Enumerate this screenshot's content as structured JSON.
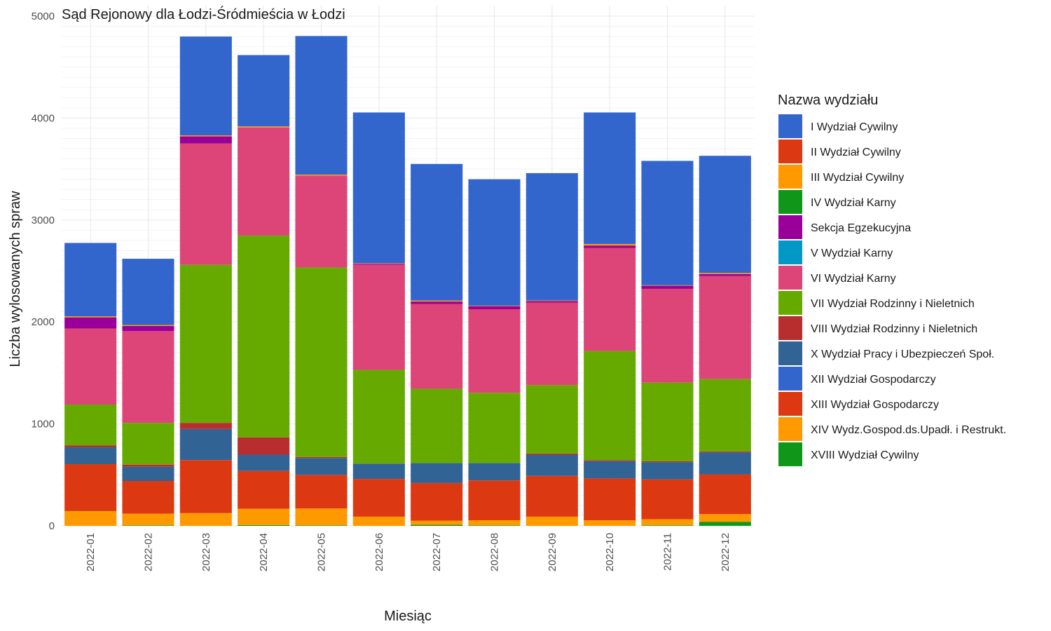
{
  "chart_data": {
    "type": "bar",
    "stacked": true,
    "title": "Sąd Rejonowy dla Łodzi-Śródmieścia w Łodzi",
    "xlabel": "Miesiąc",
    "ylabel": "Liczba wylosowanych spraw",
    "ylim": [
      0,
      5000
    ],
    "yticks": [
      0,
      1000,
      2000,
      3000,
      4000,
      5000
    ],
    "grid": true,
    "legend_title": "Nazwa wydziału",
    "legend_position": "right",
    "categories": [
      "2022-01",
      "2022-02",
      "2022-03",
      "2022-04",
      "2022-05",
      "2022-06",
      "2022-07",
      "2022-08",
      "2022-09",
      "2022-10",
      "2022-11",
      "2022-12"
    ],
    "series": [
      {
        "name": "I Wydział Cywilny",
        "color": "#3366CC",
        "values": [
          720,
          650,
          970,
          700,
          1360,
          1480,
          1340,
          1240,
          1250,
          1290,
          1220,
          1150
        ]
      },
      {
        "name": "II Wydział Cywilny",
        "color": "#DC3912",
        "values": [
          460,
          320,
          520,
          370,
          330,
          370,
          370,
          390,
          400,
          410,
          390,
          390
        ]
      },
      {
        "name": "III Wydział Cywilny",
        "color": "#FF9900",
        "values": [
          145,
          115,
          125,
          160,
          165,
          90,
          40,
          50,
          90,
          55,
          60,
          75
        ]
      },
      {
        "name": "IV Wydział Karny",
        "color": "#109618",
        "values": [
          0,
          5,
          0,
          8,
          5,
          0,
          10,
          5,
          0,
          0,
          5,
          40
        ]
      },
      {
        "name": "Sekcja Egzekucyjna",
        "color": "#990099",
        "values": [
          110,
          50,
          70,
          0,
          0,
          10,
          25,
          30,
          15,
          25,
          30,
          20
        ]
      },
      {
        "name": "V Wydział Karny",
        "color": "#0099C6",
        "values": [
          0,
          0,
          0,
          0,
          0,
          0,
          0,
          0,
          0,
          0,
          0,
          0
        ]
      },
      {
        "name": "VI Wydział Karny",
        "color": "#DD4477",
        "values": [
          745,
          900,
          1190,
          1060,
          900,
          1030,
          830,
          820,
          810,
          1010,
          920,
          1010
        ]
      },
      {
        "name": "VII Wydział Rodzinny i Nieletnich",
        "color": "#66AA00",
        "values": [
          400,
          410,
          1550,
          1980,
          1860,
          920,
          730,
          690,
          670,
          1070,
          770,
          710
        ]
      },
      {
        "name": "VIII Wydział Rodzinny i Nieletnich",
        "color": "#B82E2E",
        "values": [
          20,
          20,
          60,
          170,
          10,
          0,
          0,
          0,
          15,
          10,
          10,
          10
        ]
      },
      {
        "name": "X Wydział Pracy i Ubezpieczeń Społ.",
        "color": "#316395",
        "values": [
          165,
          140,
          305,
          160,
          165,
          150,
          195,
          170,
          205,
          170,
          170,
          215
        ]
      },
      {
        "name": "XII Wydział Gospodarczy",
        "color": "#3366CC",
        "values": [
          0,
          0,
          0,
          0,
          0,
          0,
          0,
          0,
          0,
          0,
          0,
          0
        ]
      },
      {
        "name": "XIII Wydział Gospodarczy",
        "color": "#DC3912",
        "values": [
          0,
          0,
          0,
          0,
          0,
          0,
          0,
          0,
          0,
          0,
          0,
          0
        ]
      },
      {
        "name": "XIV Wydz.Gospod.ds.Upadł. i Restrukt.",
        "color": "#FF9900",
        "values": [
          10,
          10,
          10,
          10,
          10,
          5,
          10,
          5,
          5,
          15,
          5,
          10
        ]
      },
      {
        "name": "XVIII Wydział Cywilny",
        "color": "#109618",
        "values": [
          0,
          0,
          0,
          0,
          0,
          0,
          0,
          0,
          0,
          0,
          0,
          0
        ]
      }
    ],
    "stack_order": [
      3,
      2,
      1,
      9,
      8,
      7,
      6,
      4,
      12,
      0
    ]
  }
}
